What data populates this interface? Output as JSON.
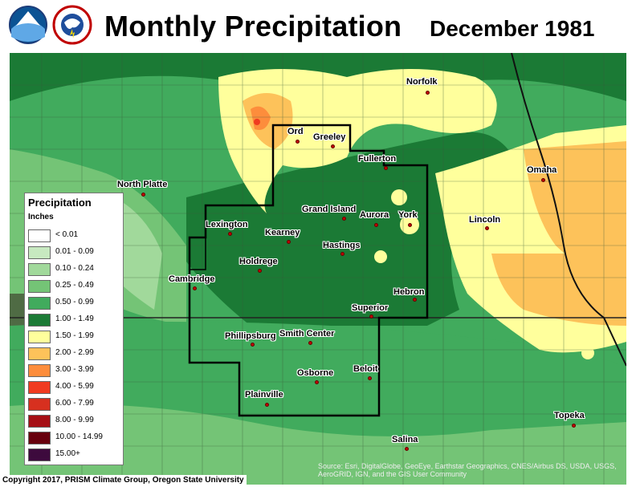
{
  "header": {
    "title": "Monthly Precipitation",
    "subtitle": "December 1981"
  },
  "legend": {
    "title": "Precipitation",
    "units": "Inches",
    "items": [
      {
        "label": "< 0.01",
        "color": "#ffffff"
      },
      {
        "label": "0.01 - 0.09",
        "color": "#c7e9c0"
      },
      {
        "label": "0.10 - 0.24",
        "color": "#a1d99b"
      },
      {
        "label": "0.25 - 0.49",
        "color": "#74c476"
      },
      {
        "label": "0.50 - 0.99",
        "color": "#41ab5d"
      },
      {
        "label": "1.00 - 1.49",
        "color": "#1b7a35"
      },
      {
        "label": "1.50 - 1.99",
        "color": "#ffff9c"
      },
      {
        "label": "2.00 - 2.99",
        "color": "#fdc25a"
      },
      {
        "label": "3.00 - 3.99",
        "color": "#fd8d3c"
      },
      {
        "label": "4.00 - 5.99",
        "color": "#f03b20"
      },
      {
        "label": "6.00 - 7.99",
        "color": "#d7301f"
      },
      {
        "label": "8.00 - 9.99",
        "color": "#a50f15"
      },
      {
        "label": "10.00 - 14.99",
        "color": "#67000d"
      },
      {
        "label": "15.00+",
        "color": "#3d0a3d"
      }
    ]
  },
  "cities": [
    {
      "name": "Norfolk"
    },
    {
      "name": "Ord"
    },
    {
      "name": "Greeley"
    },
    {
      "name": "Fullerton"
    },
    {
      "name": "North Platte"
    },
    {
      "name": "Omaha"
    },
    {
      "name": "Grand Island"
    },
    {
      "name": "Aurora"
    },
    {
      "name": "York"
    },
    {
      "name": "Lexington"
    },
    {
      "name": "Kearney"
    },
    {
      "name": "Lincoln"
    },
    {
      "name": "Hastings"
    },
    {
      "name": "Holdrege"
    },
    {
      "name": "Cambridge"
    },
    {
      "name": "Hebron"
    },
    {
      "name": "Superior"
    },
    {
      "name": "Phillipsburg"
    },
    {
      "name": "Smith Center"
    },
    {
      "name": "Beloit"
    },
    {
      "name": "Osborne"
    },
    {
      "name": "Plainville"
    },
    {
      "name": "Topeka"
    },
    {
      "name": "Salina"
    }
  ],
  "footer": {
    "copyright": "Copyright 2017, PRISM Climate Group, Oregon State University",
    "source": "Source: Esri, DigitalGlobe, GeoEye, Earthstar Geographics, CNES/Airbus DS, USDA, USGS, AeroGRID, IGN, and the GIS User Community"
  }
}
